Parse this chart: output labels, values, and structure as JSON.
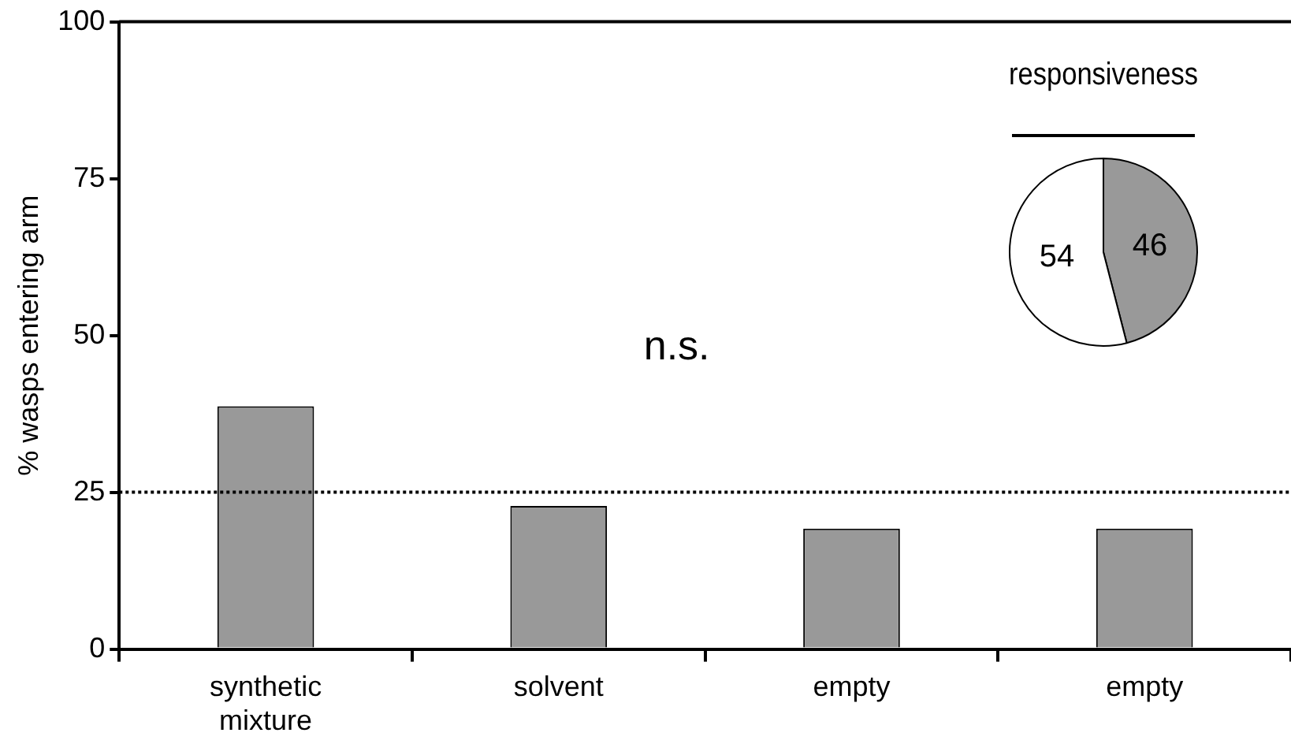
{
  "chart_data": [
    {
      "type": "bar",
      "categories": [
        "synthetic mixture",
        "solvent",
        "empty",
        "empty"
      ],
      "values": [
        38.7,
        22.8,
        19.2,
        19.2
      ],
      "color": "#999999",
      "ylabel": "% wasps entering arm",
      "ylim": [
        0,
        100
      ],
      "yticks": [
        0,
        25,
        50,
        75,
        100
      ],
      "grid": false,
      "legend": false,
      "ref_lines": [
        {
          "axis": "y",
          "value": 25,
          "line_style": "dotted",
          "color": "#000000"
        }
      ],
      "annotations": [
        "n.s."
      ]
    },
    {
      "type": "pie",
      "title": "responsiveness",
      "categories": [
        null,
        null
      ],
      "values": [
        46,
        54
      ],
      "colors": [
        "#999999",
        "#ffffff"
      ],
      "data_labels": true,
      "legend": false
    }
  ]
}
